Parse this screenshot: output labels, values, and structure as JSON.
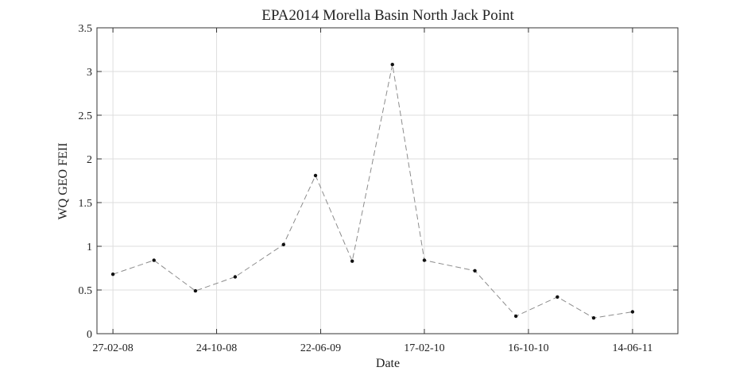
{
  "chart_data": {
    "type": "line",
    "title": "EPA2014 Morella Basin North Jack Point",
    "xlabel": "Date",
    "ylabel": "WQ GEO FEII",
    "ylim": [
      0,
      3.5
    ],
    "yticks": [
      "0",
      "0.5",
      "1",
      "1.5",
      "2",
      "2.5",
      "3",
      "3.5"
    ],
    "xlim": [
      "2008-01-21",
      "2011-09-27"
    ],
    "xticks": [
      {
        "label": "27-02-08",
        "date": "2008-02-27"
      },
      {
        "label": "24-10-08",
        "date": "2008-10-24"
      },
      {
        "label": "22-06-09",
        "date": "2009-06-22"
      },
      {
        "label": "17-02-10",
        "date": "2010-02-17"
      },
      {
        "label": "16-10-10",
        "date": "2010-10-16"
      },
      {
        "label": "14-06-11",
        "date": "2011-06-14"
      }
    ],
    "grid": true,
    "series": [
      {
        "line_style": "dashed",
        "line_color": "#8c8c8c",
        "marker_color": "#111111",
        "points": [
          {
            "x": "2008-02-27",
            "y": 0.68
          },
          {
            "x": "2008-06-01",
            "y": 0.84
          },
          {
            "x": "2008-09-05",
            "y": 0.49
          },
          {
            "x": "2008-12-06",
            "y": 0.65
          },
          {
            "x": "2009-03-28",
            "y": 1.02
          },
          {
            "x": "2009-06-10",
            "y": 1.81
          },
          {
            "x": "2009-09-03",
            "y": 0.83
          },
          {
            "x": "2009-12-05",
            "y": 3.08
          },
          {
            "x": "2010-02-17",
            "y": 0.84
          },
          {
            "x": "2010-06-14",
            "y": 0.72
          },
          {
            "x": "2010-09-17",
            "y": 0.2
          },
          {
            "x": "2010-12-22",
            "y": 0.42
          },
          {
            "x": "2011-03-16",
            "y": 0.18
          },
          {
            "x": "2011-06-14",
            "y": 0.25
          }
        ]
      }
    ]
  }
}
